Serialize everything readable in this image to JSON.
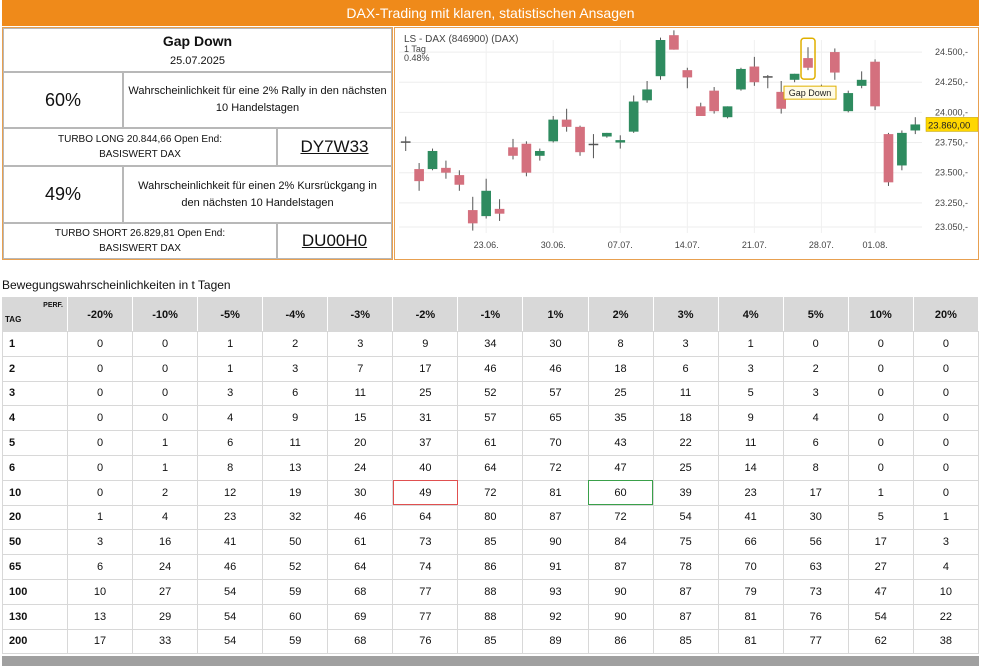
{
  "banner": {
    "title": "DAX-Trading mit klaren, statistischen Ansagen"
  },
  "info": {
    "signal_title": "Gap Down",
    "signal_date": "25.07.2025",
    "rally": {
      "percent": "60%",
      "text": "Wahrscheinlichkeit für eine 2% Rally in den nächsten 10 Handelstagen"
    },
    "long": {
      "text": "TURBO LONG 20.844,66 Open End: BASISWERT DAX",
      "code": "DY7W33"
    },
    "decline": {
      "percent": "49%",
      "text": "Wahrscheinlichkeit für einen 2% Kursrückgang in den nächsten 10 Handelstagen"
    },
    "short": {
      "text": "TURBO SHORT 26.829,81 Open End: BASISWERT DAX",
      "code": "DU00H0"
    }
  },
  "chart_data": {
    "type": "candlestick",
    "title": "LS - DAX (846900) (DAX)",
    "subtitle_lines": [
      "1 Tag",
      "0.48%"
    ],
    "ylim": [
      23000,
      24600
    ],
    "y_ticks": [
      "24.500,-",
      "24.250,-",
      "24.000,-",
      "23.750,-",
      "23.500,-",
      "23.250,-",
      "23.050,-"
    ],
    "y_tick_values": [
      24500,
      24250,
      24000,
      23750,
      23500,
      23250,
      23050
    ],
    "x_ticks": [
      "23.06.",
      "30.06.",
      "07.07.",
      "14.07.",
      "21.07.",
      "28.07.",
      "01.08."
    ],
    "x_tick_index": [
      6,
      11,
      16,
      21,
      26,
      31,
      35
    ],
    "current_price": "23.860,00",
    "annotation": {
      "label": "Gap Down",
      "index": 30
    },
    "colors": {
      "up": "#2e8b5f",
      "down": "#d4707e",
      "neutral": "#555555"
    },
    "candles": [
      [
        23760,
        23800,
        23680,
        23760
      ],
      [
        23530,
        23580,
        23350,
        23430
      ],
      [
        23530,
        23700,
        23520,
        23680
      ],
      [
        23540,
        23600,
        23450,
        23500
      ],
      [
        23480,
        23520,
        23350,
        23400
      ],
      [
        23190,
        23300,
        23020,
        23080
      ],
      [
        23140,
        23450,
        23120,
        23350
      ],
      [
        23200,
        23280,
        23100,
        23160
      ],
      [
        23710,
        23780,
        23610,
        23640
      ],
      [
        23740,
        23760,
        23470,
        23500
      ],
      [
        23640,
        23700,
        23600,
        23680
      ],
      [
        23760,
        23970,
        23750,
        23940
      ],
      [
        23940,
        24030,
        23840,
        23880
      ],
      [
        23880,
        23890,
        23640,
        23670
      ],
      [
        23740,
        23820,
        23620,
        23740
      ],
      [
        23800,
        23830,
        23790,
        23830
      ],
      [
        23750,
        23810,
        23700,
        23770
      ],
      [
        23840,
        24140,
        23830,
        24090
      ],
      [
        24100,
        24260,
        24080,
        24190
      ],
      [
        24300,
        24620,
        24270,
        24600
      ],
      [
        24640,
        24680,
        24520,
        24520
      ],
      [
        24350,
        24370,
        24200,
        24290
      ],
      [
        24050,
        24080,
        23970,
        23970
      ],
      [
        24180,
        24210,
        23990,
        24010
      ],
      [
        23960,
        24050,
        23950,
        24050
      ],
      [
        24190,
        24370,
        24180,
        24360
      ],
      [
        24380,
        24460,
        24220,
        24250
      ],
      [
        24300,
        24310,
        24200,
        24300
      ],
      [
        24170,
        24260,
        23990,
        24030
      ],
      [
        24270,
        24320,
        24250,
        24320
      ],
      [
        24450,
        24540,
        24350,
        24370
      ],
      [
        24210,
        24230,
        24140,
        24200
      ],
      [
        24500,
        24530,
        24270,
        24330
      ],
      [
        24010,
        24180,
        24000,
        24160
      ],
      [
        24220,
        24340,
        24200,
        24270
      ],
      [
        24420,
        24440,
        24020,
        24050
      ],
      [
        23820,
        23830,
        23390,
        23420
      ],
      [
        23560,
        23850,
        23520,
        23830
      ],
      [
        23850,
        23960,
        23820,
        23900
      ]
    ]
  },
  "table": {
    "section_title": "Bewegungswahrscheinlichkeiten in t Tagen",
    "corner_top": "PERF.",
    "corner_bottom": "TAG",
    "headers": [
      "-20%",
      "-10%",
      "-5%",
      "-4%",
      "-3%",
      "-2%",
      "-1%",
      "1%",
      "2%",
      "3%",
      "4%",
      "5%",
      "10%",
      "20%"
    ],
    "rows": [
      [
        "1",
        "0",
        "0",
        "1",
        "2",
        "3",
        "9",
        "34",
        "30",
        "8",
        "3",
        "1",
        "0",
        "0",
        "0"
      ],
      [
        "2",
        "0",
        "0",
        "1",
        "3",
        "7",
        "17",
        "46",
        "46",
        "18",
        "6",
        "3",
        "2",
        "0",
        "0"
      ],
      [
        "3",
        "0",
        "0",
        "3",
        "6",
        "11",
        "25",
        "52",
        "57",
        "25",
        "11",
        "5",
        "3",
        "0",
        "0"
      ],
      [
        "4",
        "0",
        "0",
        "4",
        "9",
        "15",
        "31",
        "57",
        "65",
        "35",
        "18",
        "9",
        "4",
        "0",
        "0"
      ],
      [
        "5",
        "0",
        "1",
        "6",
        "11",
        "20",
        "37",
        "61",
        "70",
        "43",
        "22",
        "11",
        "6",
        "0",
        "0"
      ],
      [
        "6",
        "0",
        "1",
        "8",
        "13",
        "24",
        "40",
        "64",
        "72",
        "47",
        "25",
        "14",
        "8",
        "0",
        "0"
      ],
      [
        "10",
        "0",
        "2",
        "12",
        "19",
        "30",
        "49",
        "72",
        "81",
        "60",
        "39",
        "23",
        "17",
        "1",
        "0"
      ],
      [
        "20",
        "1",
        "4",
        "23",
        "32",
        "46",
        "64",
        "80",
        "87",
        "72",
        "54",
        "41",
        "30",
        "5",
        "1"
      ],
      [
        "50",
        "3",
        "16",
        "41",
        "50",
        "61",
        "73",
        "85",
        "90",
        "84",
        "75",
        "66",
        "56",
        "17",
        "3"
      ],
      [
        "65",
        "6",
        "24",
        "46",
        "52",
        "64",
        "74",
        "86",
        "91",
        "87",
        "78",
        "70",
        "63",
        "27",
        "4"
      ],
      [
        "100",
        "10",
        "27",
        "54",
        "59",
        "68",
        "77",
        "88",
        "93",
        "90",
        "87",
        "79",
        "73",
        "47",
        "10"
      ],
      [
        "130",
        "13",
        "29",
        "54",
        "60",
        "69",
        "77",
        "88",
        "92",
        "90",
        "87",
        "81",
        "76",
        "54",
        "22"
      ],
      [
        "200",
        "17",
        "33",
        "54",
        "59",
        "68",
        "76",
        "85",
        "89",
        "86",
        "85",
        "81",
        "77",
        "62",
        "38"
      ]
    ],
    "highlight_red": {
      "row": 6,
      "col": 6
    },
    "highlight_green": {
      "row": 6,
      "col": 9
    }
  }
}
